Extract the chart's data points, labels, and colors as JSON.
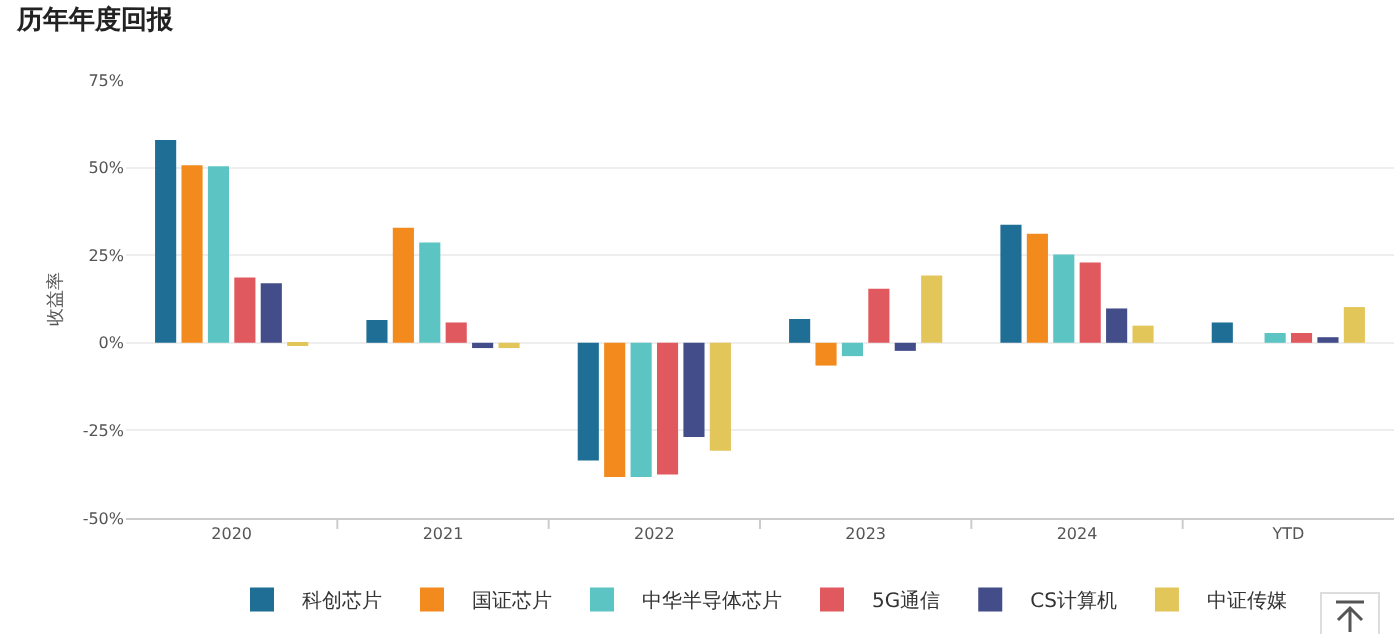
{
  "chart_data": {
    "type": "bar",
    "title": "历年年度回报",
    "ylabel": "收益率",
    "categories": [
      "2020",
      "2021",
      "2022",
      "2023",
      "2024",
      "YTD"
    ],
    "series": [
      {
        "name": "科创芯片",
        "color": "#1f6e96",
        "values": [
          57.9,
          6.5,
          -33.6,
          6.8,
          33.7,
          5.8
        ]
      },
      {
        "name": "国证芯片",
        "color": "#f28a1e",
        "values": [
          50.7,
          32.8,
          -38.3,
          -6.5,
          31.1,
          null
        ]
      },
      {
        "name": "中华半导体芯片",
        "color": "#5cc4c2",
        "values": [
          50.4,
          28.6,
          -38.3,
          -3.8,
          25.2,
          2.8
        ]
      },
      {
        "name": "5G通信",
        "color": "#e0595f",
        "values": [
          18.6,
          5.8,
          -37.6,
          15.4,
          22.9,
          2.8
        ]
      },
      {
        "name": "CS计算机",
        "color": "#434d8a",
        "values": [
          17.0,
          -1.5,
          -26.9,
          -2.3,
          9.8,
          1.6
        ]
      },
      {
        "name": "中证传媒",
        "color": "#e3c65a",
        "values": [
          -0.5,
          -1.5,
          -30.8,
          19.2,
          4.9,
          10.2
        ]
      }
    ],
    "ylim": [
      -50,
      75
    ],
    "yticks": [
      {
        "value": -50,
        "label": "-50%"
      },
      {
        "value": -25,
        "label": "-25%"
      },
      {
        "value": 0,
        "label": "0%"
      },
      {
        "value": 25,
        "label": "25%"
      },
      {
        "value": 50,
        "label": "50%"
      },
      {
        "value": 75,
        "label": "75%"
      }
    ],
    "grid": "y",
    "legend": "bottom"
  }
}
